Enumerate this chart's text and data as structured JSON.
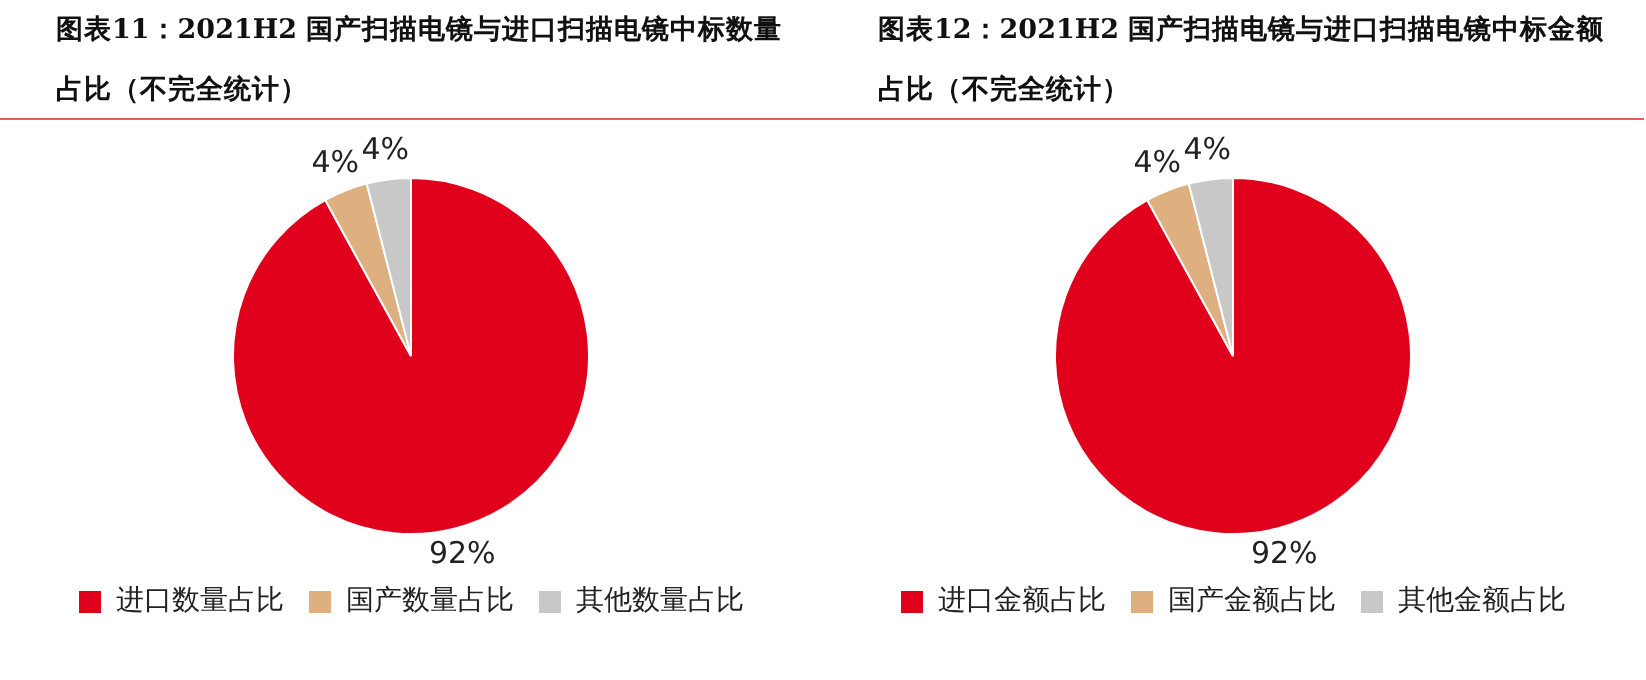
{
  "chart_data": [
    {
      "type": "pie",
      "title": "图表11：2021H2 国产扫描电镜与进口扫描电镜中标数量占比（不完全统计）",
      "categories": [
        "进口数量占比",
        "国产数量占比",
        "其他数量占比"
      ],
      "values": [
        92,
        4,
        4
      ],
      "colors": [
        "#e0001b",
        "#deb07f",
        "#c8c8c8"
      ],
      "value_labels": [
        "92%",
        "4%",
        "4%"
      ],
      "legend": "bottom"
    },
    {
      "type": "pie",
      "title": "图表12：2021H2 国产扫描电镜与进口扫描电镜中标金额占比（不完全统计）",
      "categories": [
        "进口金额占比",
        "国产金额占比",
        "其他金额占比"
      ],
      "values": [
        92,
        4,
        4
      ],
      "colors": [
        "#e0001b",
        "#deb07f",
        "#c8c8c8"
      ],
      "value_labels": [
        "92%",
        "4%",
        "4%"
      ],
      "legend": "bottom"
    }
  ]
}
